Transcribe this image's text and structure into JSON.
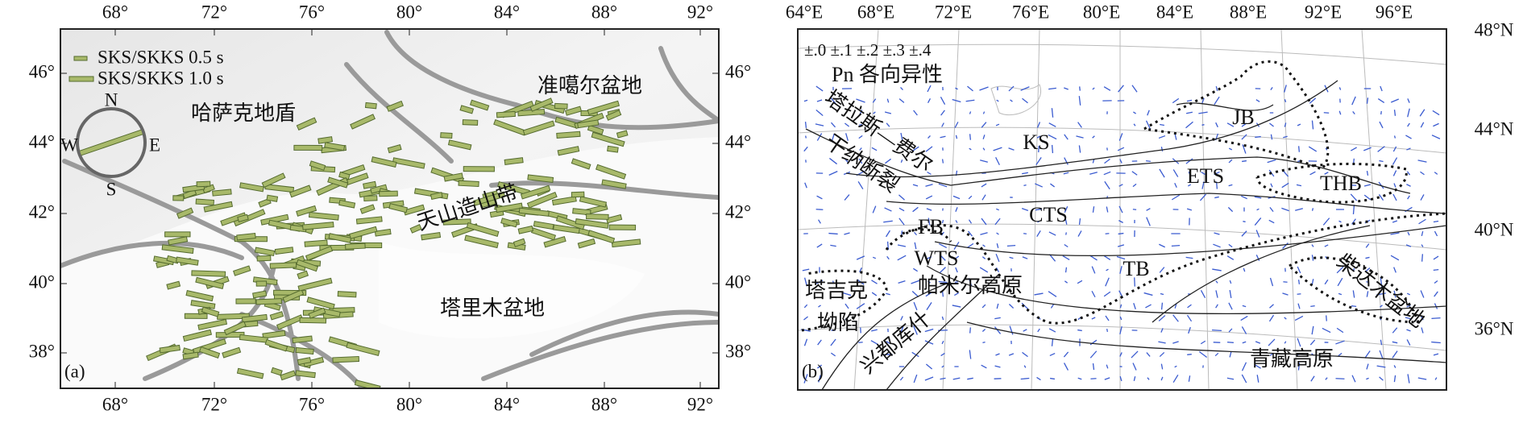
{
  "panel_a": {
    "label": "(a)",
    "top_ticks": [
      "68°",
      "72°",
      "76°",
      "80°",
      "84°",
      "88°",
      "92°"
    ],
    "left_ticks": [
      "46°",
      "44°",
      "42°",
      "40°",
      "38°"
    ],
    "right_ticks": [
      "46°",
      "44°",
      "42°",
      "40°",
      "38°"
    ],
    "bottom_ticks": [
      "68°",
      "72°",
      "76°",
      "80°",
      "84°",
      "88°",
      "92°"
    ],
    "legend": [
      "SKS/SKKS 0.5 s",
      "SKS/SKKS 1.0 s"
    ],
    "compass": {
      "n": "N",
      "e": "E",
      "s": "S",
      "w": "W"
    },
    "regions": [
      "哈萨克地盾",
      "准噶尔盆地",
      "天山造山带",
      "塔里木盆地"
    ]
  },
  "panel_b": {
    "label": "(b)",
    "top_ticks": [
      "64°E",
      "68°E",
      "72°E",
      "76°E",
      "80°E",
      "84°E",
      "88°E",
      "92°E",
      "96°E"
    ],
    "right_ticks": [
      "48°N",
      "44°N",
      "40°N",
      "36°N"
    ],
    "legend": "±.0 ±.1 ±.2 ±.3 ±.4",
    "legend_title": "Pn 各向异性",
    "fault": [
      "塔拉斯—费尔",
      "干纳断裂"
    ],
    "regions": [
      "KS",
      "JB",
      "ETS",
      "THB",
      "CTS",
      "FB",
      "WTS",
      "TB",
      "帕米尔高原",
      "青藏高原"
    ],
    "tajik": [
      "塔吉克",
      "坳陷"
    ],
    "hindu_kush": "兴都库什",
    "qaidam": "柴达木盆地"
  }
}
